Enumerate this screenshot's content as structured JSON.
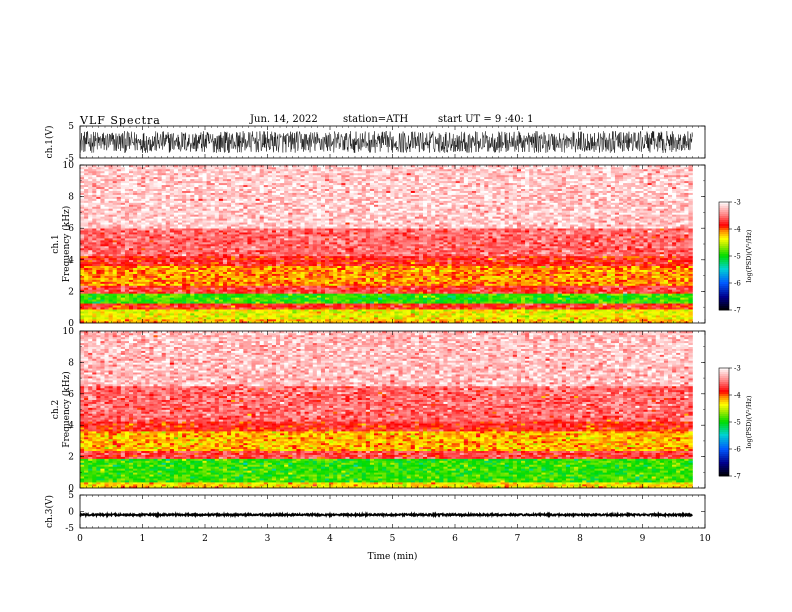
{
  "header": {
    "title": "VLF  Spectra",
    "date": "Jun. 14, 2022",
    "station": "station=ATH",
    "start_ut": "start  UT  =   9  :40: 1"
  },
  "chart_data": [
    {
      "type": "line",
      "panel": "ch1",
      "ylabel": "ch.1(V)",
      "ylim": [
        -5,
        5
      ],
      "yticks": [
        "5",
        "-5"
      ],
      "xlim": [
        0,
        10
      ],
      "data_end_min": 9.8,
      "waveform": "broadband noise filling approx. -3.5 to +3.5 V",
      "color": "#000000"
    },
    {
      "type": "heatmap",
      "panel": "ch1-spectrogram",
      "ylabel": "ch.1\nFrequency  (kHz)",
      "ylim": [
        0,
        10
      ],
      "yticks": [
        "0",
        "2",
        "4",
        "6",
        "8",
        "10"
      ],
      "xlim": [
        0,
        10
      ],
      "data_end_min": 9.8,
      "colorbar": {
        "label": "log(PSD)(V²/Hz)",
        "ticks": [
          "-3",
          "-4",
          "-5",
          "-6",
          "-7"
        ],
        "range": [
          -7,
          -3
        ]
      },
      "bands_log_psd": [
        {
          "f": [
            0,
            0.3
          ],
          "level": -4.2
        },
        {
          "f": [
            0.3,
            0.9
          ],
          "level": -4.4
        },
        {
          "f": [
            0.9,
            1.2
          ],
          "level": -3.8
        },
        {
          "f": [
            1.2,
            1.9
          ],
          "level": -4.9
        },
        {
          "f": [
            1.9,
            2.4
          ],
          "level": -3.7
        },
        {
          "f": [
            2.4,
            3.6
          ],
          "level": -4.1
        },
        {
          "f": [
            3.6,
            4.2
          ],
          "level": -3.8
        },
        {
          "f": [
            4.2,
            6.0
          ],
          "level": -3.55
        },
        {
          "f": [
            6.0,
            10.0
          ],
          "level": -3.2
        }
      ]
    },
    {
      "type": "heatmap",
      "panel": "ch2-spectrogram",
      "ylabel": "ch.2\nFrequency  (kHz)",
      "ylim": [
        0,
        10
      ],
      "yticks": [
        "0",
        "2",
        "4",
        "6",
        "8",
        "10"
      ],
      "xlim": [
        0,
        10
      ],
      "data_end_min": 9.8,
      "colorbar": {
        "label": "log(PSD)(V²/Hz)",
        "ticks": [
          "-3",
          "-4",
          "-5",
          "-6",
          "-7"
        ],
        "range": [
          -7,
          -3
        ]
      },
      "bands_log_psd": [
        {
          "f": [
            0,
            0.4
          ],
          "level": -4.3
        },
        {
          "f": [
            0.4,
            1.9
          ],
          "level": -4.9
        },
        {
          "f": [
            1.9,
            2.4
          ],
          "level": -3.7
        },
        {
          "f": [
            2.4,
            3.6
          ],
          "level": -4.2
        },
        {
          "f": [
            3.6,
            4.3
          ],
          "level": -3.8
        },
        {
          "f": [
            4.3,
            6.5
          ],
          "level": -3.55
        },
        {
          "f": [
            6.5,
            10.0
          ],
          "level": -3.25
        }
      ]
    },
    {
      "type": "line",
      "panel": "ch3",
      "ylabel": "ch.3(V)",
      "ylim": [
        -5,
        5
      ],
      "yticks": [
        "5",
        "0",
        "-5"
      ],
      "xlim": [
        0,
        10
      ],
      "data_end_min": 9.8,
      "waveform": "thin flat trace near -1 V",
      "color": "#000000"
    }
  ],
  "x_axis": {
    "label": "Time  (min)",
    "ticks": [
      "0",
      "1",
      "2",
      "3",
      "4",
      "5",
      "6",
      "7",
      "8",
      "9",
      "10"
    ]
  }
}
